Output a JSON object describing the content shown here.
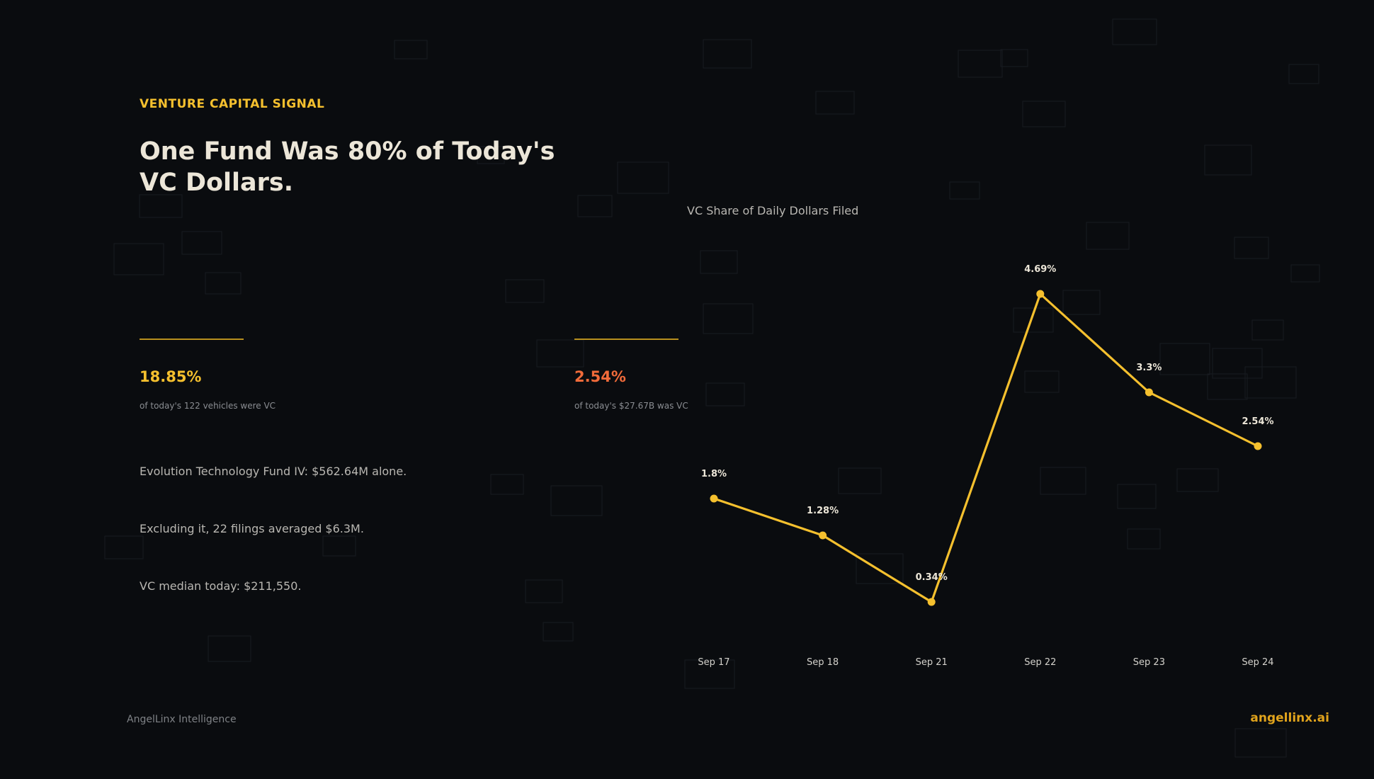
{
  "eyebrow": "VENTURE CAPITAL SIGNAL",
  "headline": "One Fund Was 80% of Today's VC Dollars.",
  "stats": [
    {
      "value": "18.85%",
      "caption": "of today's 122 vehicles were VC",
      "color": "#f5c02e"
    },
    {
      "value": "2.54%",
      "caption": "of today's $27.67B was VC",
      "color": "#f26b3a"
    }
  ],
  "notes": [
    "Evolution Technology Fund IV: $562.64M alone.",
    "Excluding it, 22 filings averaged $6.3M.",
    "VC median today: $211,550."
  ],
  "footer": {
    "source": "AngelLinx Intelligence",
    "brand": "angellinx.ai"
  },
  "colors": {
    "accent": "#f5c02e",
    "secondary_accent": "#f26b3a",
    "background": "#0a0c0f"
  },
  "chart_data": {
    "type": "line",
    "title": "VC Share of Daily Dollars Filed",
    "categories": [
      "Sep 17",
      "Sep 18",
      "Sep 21",
      "Sep 22",
      "Sep 23",
      "Sep 24"
    ],
    "series": [
      {
        "values": [
          1.8,
          1.28,
          0.34,
          4.69,
          3.3,
          2.54
        ],
        "color": "#f5c02e"
      }
    ],
    "data_labels": [
      "1.8%",
      "1.28%",
      "0.34%",
      "4.69%",
      "3.3%",
      "2.54%"
    ],
    "ylim": [
      0,
      5
    ],
    "grid": false,
    "legend": "none"
  }
}
